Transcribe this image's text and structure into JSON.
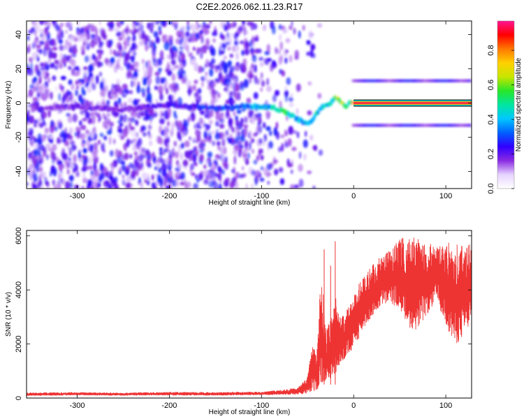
{
  "chart_data": [
    {
      "type": "heatmap",
      "title": "C2E2.2026.062.11.23.R17",
      "xlabel": "Height of straight line (km)",
      "ylabel": "Frequency (Hz)",
      "xlim": [
        -355,
        128
      ],
      "ylim": [
        -50,
        48
      ],
      "xticks": [
        -300,
        -200,
        -100,
        0,
        100
      ],
      "yticks": [
        -40,
        -20,
        0,
        20,
        40
      ],
      "colorbar": {
        "label": "Normalized spectral amplitude",
        "ticks": [
          "0.0",
          "0.2",
          "0.4",
          "0.6",
          "0.8"
        ],
        "range": [
          0,
          0.97
        ],
        "colors": [
          "#ffffff",
          "#e6d3ff",
          "#8a2be2",
          "#3000ff",
          "#0060ff",
          "#00c8ff",
          "#00e6a0",
          "#28e628",
          "#c8e600",
          "#ffd000",
          "#ff7800",
          "#ff0000",
          "#ff1493"
        ]
      },
      "ridge": {
        "x": [
          -340,
          -300,
          -250,
          -200,
          -160,
          -120,
          -100,
          -85,
          -72,
          -62,
          -55,
          -48,
          -42,
          -36,
          -30,
          -25,
          -20,
          -16,
          -12,
          -8,
          -4,
          0,
          128
        ],
        "freq": [
          -3,
          -2,
          -4,
          -1,
          -3,
          -2,
          -2,
          -3,
          -6,
          -9,
          -11,
          -12,
          -8,
          -3,
          -1,
          0,
          3,
          2,
          0,
          -2,
          0,
          1,
          0
        ],
        "amplitude": [
          0.2,
          0.2,
          0.2,
          0.25,
          0.3,
          0.35,
          0.45,
          0.5,
          0.55,
          0.45,
          0.4,
          0.5,
          0.55,
          0.5,
          0.45,
          0.55,
          0.65,
          0.7,
          0.7,
          0.55,
          0.6,
          0.85,
          0.85
        ]
      },
      "side_bands": [
        {
          "freq": 13,
          "x_start": 0,
          "x_end": 128
        },
        {
          "freq": -13,
          "x_start": 0,
          "x_end": 128
        }
      ]
    },
    {
      "type": "line",
      "xlabel": "Height of straight line (km)",
      "ylabel": "SNR (10 * v/v)",
      "xlim": [
        -355,
        128
      ],
      "ylim": [
        0,
        6200
      ],
      "xticks": [
        -300,
        -200,
        -100,
        0,
        100
      ],
      "yticks": [
        0,
        2000,
        4000,
        6000
      ],
      "color": "#ee3333",
      "series": [
        {
          "name": "SNR",
          "x": [
            -355,
            -300,
            -250,
            -200,
            -150,
            -100,
            -80,
            -60,
            -50,
            -45,
            -40,
            -35,
            -30,
            -25,
            -20,
            -15,
            -10,
            -5,
            0,
            10,
            20,
            30,
            40,
            50,
            60,
            70,
            80,
            90,
            100,
            110,
            120,
            128
          ],
          "upper": [
            200,
            220,
            200,
            230,
            220,
            240,
            300,
            400,
            800,
            2000,
            1800,
            4800,
            2500,
            3000,
            3800,
            3000,
            3200,
            3400,
            3800,
            4600,
            4900,
            5300,
            5500,
            5900,
            6000,
            5900,
            5800,
            5600,
            5800,
            5700,
            5800,
            5800
          ],
          "lower": [
            80,
            100,
            90,
            100,
            90,
            110,
            120,
            130,
            150,
            200,
            300,
            500,
            600,
            700,
            900,
            1200,
            1400,
            1600,
            1800,
            2500,
            3000,
            3400,
            3500,
            3300,
            2600,
            2500,
            3100,
            3600,
            2700,
            1900,
            2300,
            2800
          ]
        }
      ]
    }
  ]
}
